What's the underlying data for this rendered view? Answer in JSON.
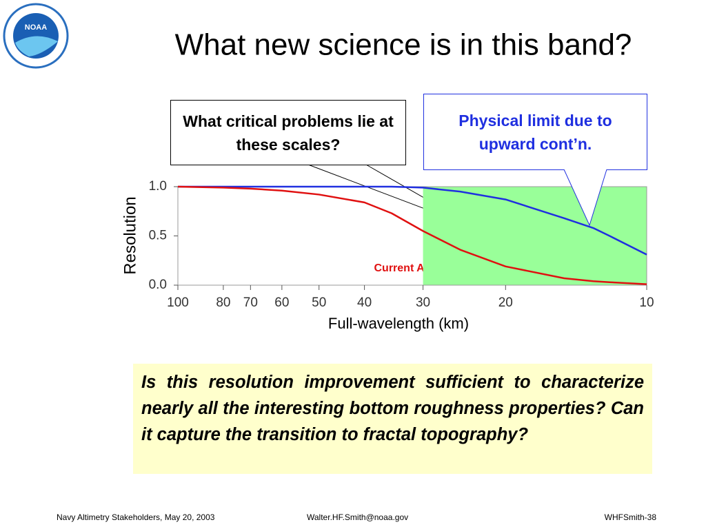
{
  "title": "What new science is in this band?",
  "logo": "NOAA",
  "chart_data": {
    "type": "line",
    "x": [
      100,
      80,
      70,
      60,
      50,
      40,
      35,
      30,
      25,
      20,
      15,
      13,
      12,
      10
    ],
    "series": [
      {
        "name": "Physical limit",
        "color": "#1f2fe0",
        "values": [
          1.0,
          1.0,
          1.0,
          1.0,
          1.0,
          1.0,
          1.0,
          0.99,
          0.95,
          0.87,
          0.68,
          0.58,
          0.5,
          0.31
        ]
      },
      {
        "name": "Current Altimetry",
        "color": "#e01010",
        "values": [
          1.0,
          0.99,
          0.98,
          0.96,
          0.92,
          0.84,
          0.73,
          0.55,
          0.36,
          0.19,
          0.07,
          0.04,
          0.03,
          0.01
        ]
      }
    ],
    "xlim": [
      100,
      10
    ],
    "xscale": "log",
    "xticks": [
      100,
      80,
      70,
      60,
      50,
      40,
      30,
      20,
      10
    ],
    "ylim": [
      0,
      1
    ],
    "yticks": [
      {
        "value": 0,
        "label": "0.0"
      },
      {
        "value": 0.5,
        "label": "0.5"
      },
      {
        "value": 1,
        "label": "1.0"
      }
    ],
    "shaded_region": {
      "xlim": [
        30,
        10
      ],
      "color": "#99ff99"
    },
    "xlabel": "Full-wavelength (km)",
    "ylabel": "Resolution",
    "annotations": [
      "What critical problems lie at these scales?",
      "Physical limit due to upward cont’n."
    ]
  },
  "question": "Is this resolution improvement sufficient to characterize nearly all the interesting bottom roughness properties?  Can it capture the transition to fractal topography?",
  "footer": {
    "left": "Navy Altimetry Stakeholders, May 20, 2003",
    "center": "Walter.HF.Smith@noaa.gov",
    "right": "WHFSmith-38"
  }
}
